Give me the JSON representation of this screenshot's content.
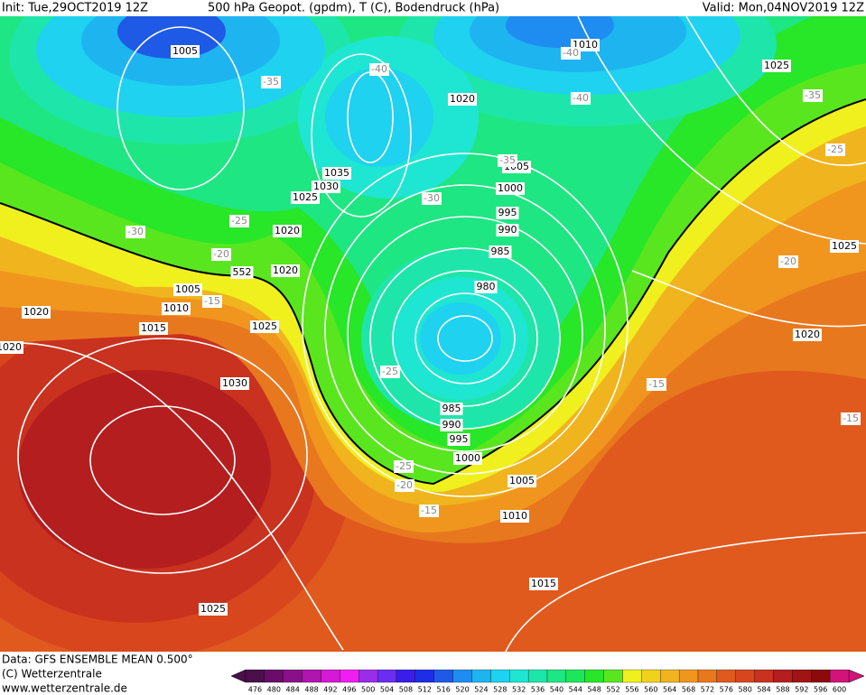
{
  "header": {
    "init": "Init: Tue,29OCT2019 12Z",
    "title": "500 hPa Geopot. (gpdm), T (C), Bodendruck (hPa)",
    "valid": "Valid: Mon,04NOV2019 12Z"
  },
  "footer": {
    "data": "Data: GFS ENSEMBLE MEAN 0.500°",
    "copyright": "(C) Wetterzentrale",
    "url": "www.wetterzentrale.de"
  },
  "legend": {
    "levels": [
      476,
      480,
      484,
      488,
      492,
      496,
      500,
      504,
      508,
      512,
      516,
      520,
      524,
      528,
      532,
      536,
      540,
      544,
      548,
      552,
      556,
      560,
      564,
      568,
      572,
      576,
      580,
      584,
      588,
      592,
      596,
      600
    ],
    "colors": [
      "#4b0f4b",
      "#6a0d6a",
      "#8a108a",
      "#b015b0",
      "#d41ad4",
      "#f01ef0",
      "#9a2ee6",
      "#6a2ef0",
      "#3a1ee8",
      "#1e2ee6",
      "#1e5ae6",
      "#1e8cf0",
      "#1eb4f0",
      "#1ed2f0",
      "#1ee6d2",
      "#1ee6aa",
      "#1ee682",
      "#1ee65a",
      "#28e628",
      "#5ae61e",
      "#f0f01e",
      "#f0d21e",
      "#f0b41e",
      "#f0961e",
      "#e8781e",
      "#e05a1e",
      "#d8461e",
      "#c8321e",
      "#b41e1e",
      "#a01414",
      "#8c0a0a",
      "#d2147a"
    ]
  },
  "isobar_labels": [
    1005,
    1010,
    1025,
    1020,
    1005,
    1035,
    1030,
    1025,
    1000,
    995,
    990,
    1020,
    985,
    1020,
    1005,
    980,
    1010,
    1020,
    1015,
    1025,
    1020,
    1020,
    1025,
    1030,
    985,
    990,
    995,
    1000,
    1005,
    1010,
    1015,
    1025
  ],
  "geopotential_labels": [
    552
  ],
  "temperature_labels": [
    -40,
    -40,
    -35,
    -40,
    -35,
    -25,
    -35,
    -30,
    -30,
    -25,
    -20,
    -15,
    -20,
    -25,
    -15,
    -15,
    -25,
    -20,
    -15
  ]
}
